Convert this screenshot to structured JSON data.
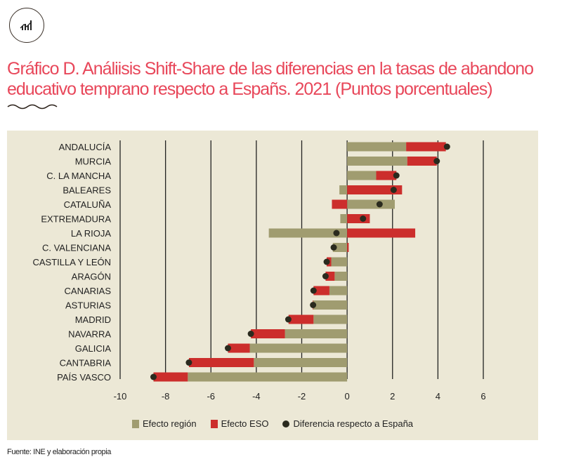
{
  "header": {
    "logo_icon": "bar-chart-icon",
    "title": "Gráfico D.  Análiisis Shift-Share de las diferencias en la tasas de abandono educativo temprano respecto a Españs. 2021 (Puntos porcentuales)"
  },
  "colors": {
    "region": "#a09c70",
    "eso": "#cc2e2c",
    "diff": "#2a2a1e",
    "background": "#ece8d6",
    "title": "#e8475a"
  },
  "chart_data": {
    "type": "bar",
    "orientation": "horizontal-stacked",
    "categories": [
      "ANDALUCÍA",
      "MURCIA",
      "C. LA MANCHA",
      "BALEARES",
      "CATALUÑA",
      "EXTREMADURA",
      "LA RIOJA",
      "C. VALENCIANA",
      "CASTILLA Y LEÓN",
      "ARAGÓN",
      "CANARIAS",
      "ASTURIAS",
      "MADRID",
      "NAVARRA",
      "GALICIA",
      "CANTABRIA",
      "PAÍS VASCO"
    ],
    "series": [
      {
        "name": "Efecto región",
        "type": "bar",
        "values": [
          2.6,
          2.65,
          1.28,
          -0.34,
          2.1,
          -0.3,
          -3.45,
          -0.63,
          -0.7,
          -0.55,
          -0.78,
          -1.5,
          -1.48,
          -2.74,
          -4.29,
          -4.11,
          -7.02
        ]
      },
      {
        "name": "Efecto ESO",
        "type": "bar",
        "values": [
          1.75,
          1.3,
          0.89,
          2.42,
          -0.67,
          1.0,
          3.0,
          0.07,
          -0.2,
          -0.4,
          -0.7,
          -0.02,
          -1.1,
          -1.5,
          -0.96,
          -2.86,
          -1.51
        ]
      },
      {
        "name": "Diferencia respecto a España",
        "type": "scatter",
        "values": [
          4.4,
          3.95,
          2.17,
          2.05,
          1.43,
          0.7,
          -0.47,
          -0.59,
          -0.9,
          -0.95,
          -1.48,
          -1.5,
          -2.59,
          -4.24,
          -5.25,
          -6.97,
          -8.53
        ]
      }
    ],
    "xlim": [
      -10,
      6
    ],
    "xticks": [
      "-10",
      "-8",
      "-6",
      "-4",
      "-2",
      "0",
      "2",
      "4",
      "6"
    ],
    "grid": "vertical",
    "legend": "bottom"
  },
  "legend": {
    "region": "Efecto región",
    "eso": "Efecto ESO",
    "diff": "Diferencia respecto a España"
  },
  "source": "Fuente: INE y elaboración propia"
}
